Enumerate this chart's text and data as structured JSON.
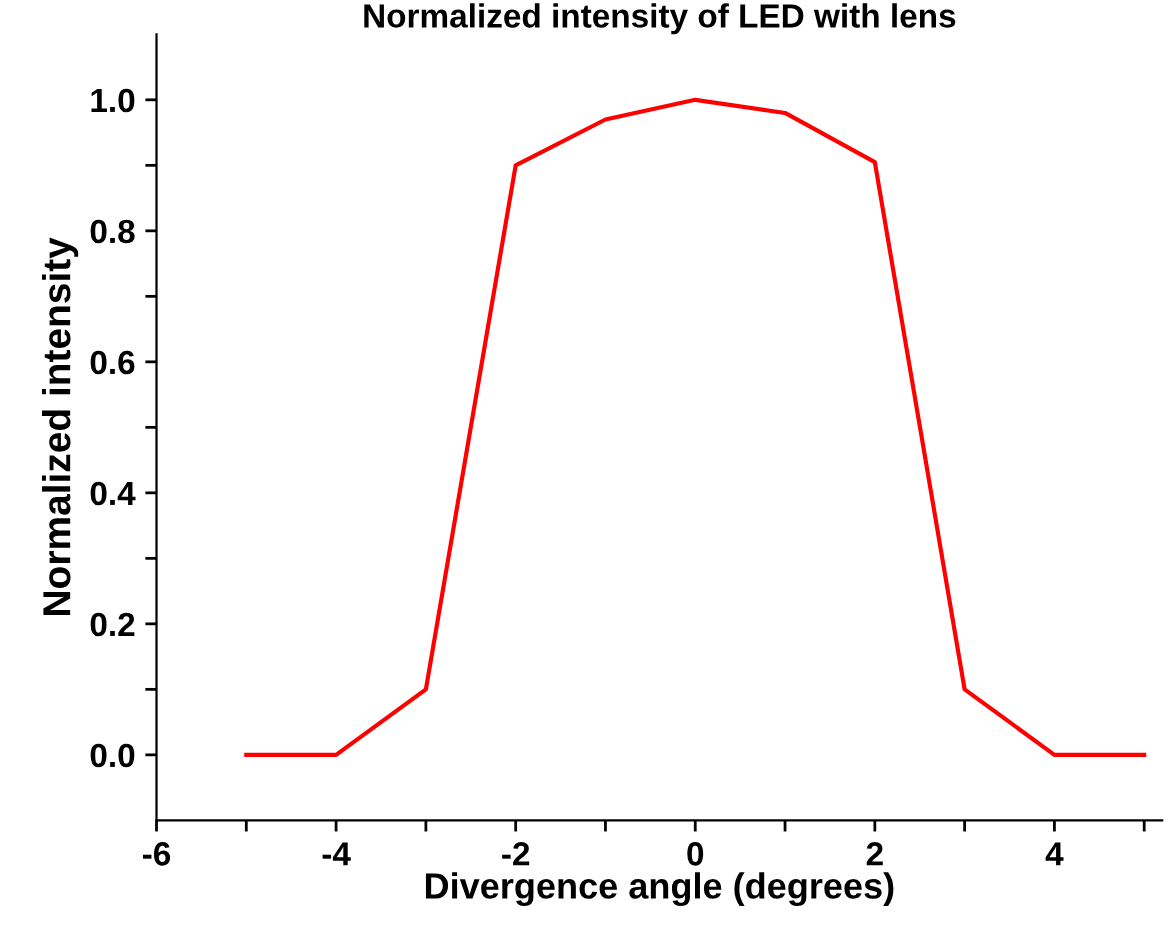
{
  "chart_data": {
    "type": "line",
    "title": "Normalized intensity of LED with lens",
    "xlabel": "Divergence angle (degrees)",
    "ylabel": "Normalized intensity",
    "x": [
      -5,
      -4,
      -3,
      -2,
      -1,
      0,
      1,
      2,
      3,
      4,
      5
    ],
    "series": [
      {
        "color": "#ff0000",
        "values": [
          0,
          0,
          0.1,
          0.9,
          0.97,
          1.0,
          0.98,
          0.905,
          0.1,
          0,
          0
        ]
      }
    ],
    "xlim": [
      -6,
      5.2
    ],
    "ylim": [
      -0.1,
      1.1
    ],
    "xticks": [
      -6,
      {
        "value": -5,
        "label": null
      },
      -4,
      {
        "value": -3,
        "label": null
      },
      -2,
      {
        "value": -1,
        "label": null
      },
      0,
      {
        "value": 1,
        "label": null
      },
      2,
      {
        "value": 3,
        "label": null
      },
      4,
      {
        "value": 5,
        "label": null
      }
    ],
    "yticks": [
      {
        "value": 0,
        "label": "0.0"
      },
      {
        "value": 0.1,
        "label": null
      },
      {
        "value": 0.2,
        "label": "0.2"
      },
      {
        "value": 0.3,
        "label": null
      },
      {
        "value": 0.4,
        "label": "0.4"
      },
      {
        "value": 0.5,
        "label": null
      },
      {
        "value": 0.6,
        "label": "0.6"
      },
      {
        "value": 0.7,
        "label": null
      },
      {
        "value": 0.8,
        "label": "0.8"
      },
      {
        "value": 0.9,
        "label": null
      },
      {
        "value": 1.0,
        "label": "1.0"
      }
    ],
    "grid": false,
    "legend": false,
    "marker": "none",
    "line_style": "solid"
  }
}
